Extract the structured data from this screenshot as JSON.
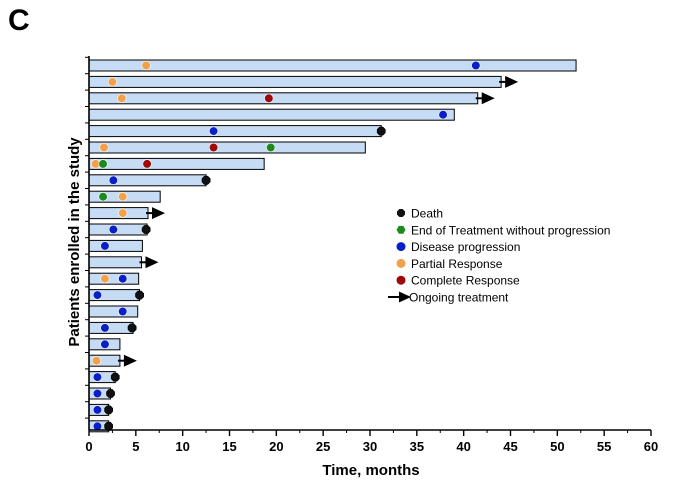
{
  "panel_label": "C",
  "chart_data": {
    "type": "swimmer",
    "title": "",
    "xlabel": "Time, months",
    "ylabel": "Patients enrolled in the study",
    "xlim": [
      0,
      60
    ],
    "xticks": [
      0,
      5,
      10,
      15,
      20,
      25,
      30,
      35,
      40,
      45,
      50,
      55,
      60
    ],
    "bar_color": "#c6dcf5",
    "event_colors": {
      "death": "#111111",
      "end_treatment": "#1e8a1e",
      "progression": "#0a1fc8",
      "partial_response": "#f2a04a",
      "complete_response": "#9e0a0a",
      "ongoing": "#000000"
    },
    "legend": [
      {
        "key": "death",
        "label": "Death"
      },
      {
        "key": "end_treatment",
        "label": "End of Treatment without progression"
      },
      {
        "key": "progression",
        "label": "Disease progression"
      },
      {
        "key": "partial_response",
        "label": "Partial Response"
      },
      {
        "key": "complete_response",
        "label": "Complete Response"
      },
      {
        "key": "ongoing",
        "label": "Ongoing treatment"
      }
    ],
    "patients": [
      {
        "duration": 52,
        "ongoing": false,
        "events": [
          {
            "type": "partial_response",
            "t": 6.1
          },
          {
            "type": "progression",
            "t": 41.3
          }
        ]
      },
      {
        "duration": 44,
        "ongoing": true,
        "events": [
          {
            "type": "partial_response",
            "t": 2.5
          }
        ]
      },
      {
        "duration": 41.5,
        "ongoing": true,
        "events": [
          {
            "type": "partial_response",
            "t": 3.5
          },
          {
            "type": "complete_response",
            "t": 19.2
          }
        ]
      },
      {
        "duration": 39,
        "ongoing": false,
        "events": [
          {
            "type": "progression",
            "t": 37.8
          }
        ]
      },
      {
        "duration": 31.2,
        "ongoing": false,
        "events": [
          {
            "type": "progression",
            "t": 13.3
          },
          {
            "type": "death",
            "t": 31.2
          }
        ]
      },
      {
        "duration": 29.5,
        "ongoing": false,
        "events": [
          {
            "type": "partial_response",
            "t": 1.6
          },
          {
            "type": "complete_response",
            "t": 13.3
          },
          {
            "type": "end_treatment",
            "t": 19.4
          }
        ]
      },
      {
        "duration": 18.7,
        "ongoing": false,
        "events": [
          {
            "type": "partial_response",
            "t": 0.7
          },
          {
            "type": "end_treatment",
            "t": 1.5
          },
          {
            "type": "complete_response",
            "t": 6.2
          }
        ]
      },
      {
        "duration": 12.5,
        "ongoing": false,
        "events": [
          {
            "type": "progression",
            "t": 2.6
          },
          {
            "type": "death",
            "t": 12.5
          }
        ]
      },
      {
        "duration": 7.6,
        "ongoing": false,
        "events": [
          {
            "type": "end_treatment",
            "t": 1.5
          },
          {
            "type": "partial_response",
            "t": 3.6
          }
        ]
      },
      {
        "duration": 6.3,
        "ongoing": true,
        "events": [
          {
            "type": "partial_response",
            "t": 3.6
          }
        ]
      },
      {
        "duration": 6.2,
        "ongoing": false,
        "events": [
          {
            "type": "progression",
            "t": 2.6
          },
          {
            "type": "death",
            "t": 6.1
          }
        ]
      },
      {
        "duration": 5.7,
        "ongoing": false,
        "events": [
          {
            "type": "progression",
            "t": 1.7
          }
        ]
      },
      {
        "duration": 5.6,
        "ongoing": true,
        "events": []
      },
      {
        "duration": 5.3,
        "ongoing": false,
        "events": [
          {
            "type": "partial_response",
            "t": 1.7
          },
          {
            "type": "progression",
            "t": 3.6
          }
        ]
      },
      {
        "duration": 5.4,
        "ongoing": false,
        "events": [
          {
            "type": "progression",
            "t": 0.9
          },
          {
            "type": "death",
            "t": 5.4
          }
        ]
      },
      {
        "duration": 5.2,
        "ongoing": false,
        "events": [
          {
            "type": "progression",
            "t": 3.6
          }
        ]
      },
      {
        "duration": 4.7,
        "ongoing": false,
        "events": [
          {
            "type": "progression",
            "t": 1.7
          },
          {
            "type": "death",
            "t": 4.6
          }
        ]
      },
      {
        "duration": 3.3,
        "ongoing": false,
        "events": [
          {
            "type": "progression",
            "t": 1.7
          }
        ]
      },
      {
        "duration": 3.3,
        "ongoing": true,
        "events": [
          {
            "type": "partial_response",
            "t": 0.8
          }
        ]
      },
      {
        "duration": 2.8,
        "ongoing": false,
        "events": [
          {
            "type": "progression",
            "t": 0.9
          },
          {
            "type": "death",
            "t": 2.8
          }
        ]
      },
      {
        "duration": 2.3,
        "ongoing": false,
        "events": [
          {
            "type": "progression",
            "t": 0.9
          },
          {
            "type": "death",
            "t": 2.3
          }
        ]
      },
      {
        "duration": 2.1,
        "ongoing": false,
        "events": [
          {
            "type": "progression",
            "t": 0.9
          },
          {
            "type": "death",
            "t": 2.1
          }
        ]
      },
      {
        "duration": 2.1,
        "ongoing": false,
        "events": [
          {
            "type": "progression",
            "t": 0.9
          },
          {
            "type": "death",
            "t": 2.1
          }
        ]
      }
    ]
  }
}
